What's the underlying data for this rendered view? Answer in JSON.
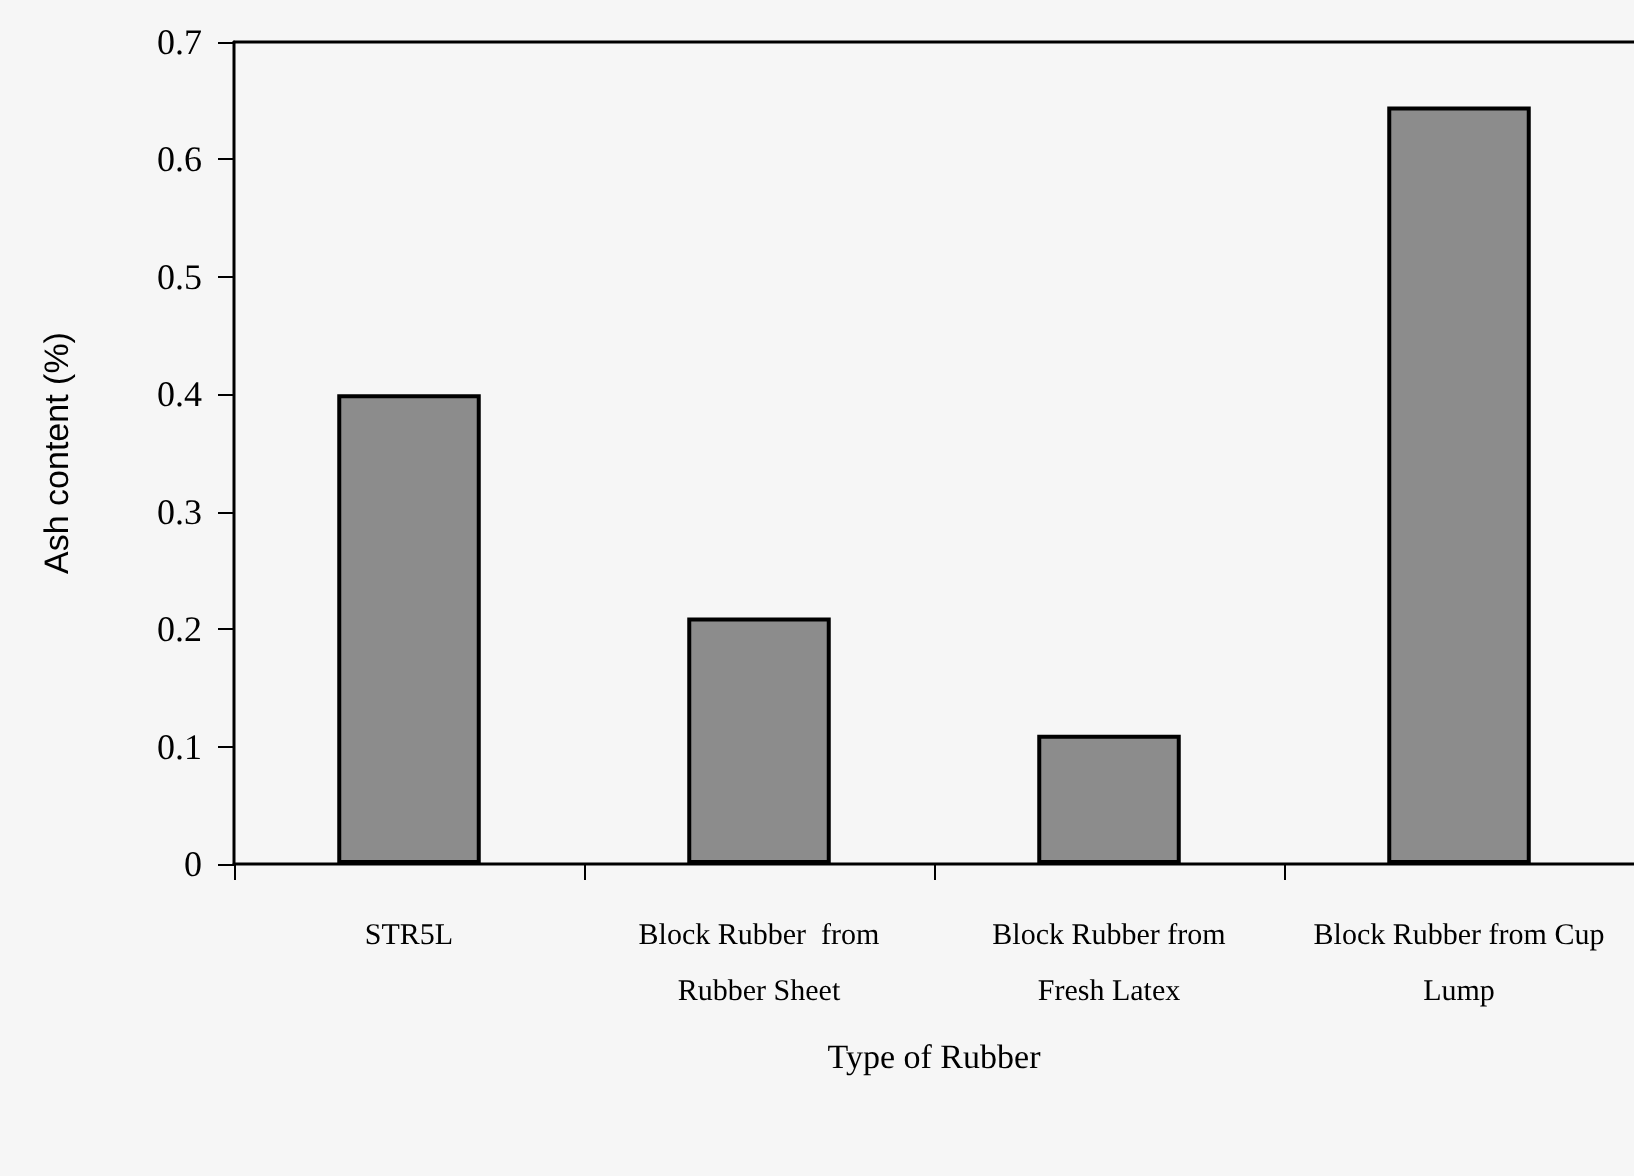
{
  "chart_data": {
    "type": "bar",
    "xlabel": "Type of Rubber",
    "ylabel": "Ash content (%)",
    "categories": [
      "STR5L",
      "Block Rubber  from\nRubber Sheet",
      "Block Rubber from\nFresh Latex",
      "Block Rubber from Cup\nLump"
    ],
    "values": [
      0.4,
      0.21,
      0.11,
      0.645
    ],
    "color": "#8c8c8c",
    "ylim": [
      0,
      0.7
    ],
    "yticks": [
      0,
      0.1,
      0.2,
      0.3,
      0.4,
      0.5,
      0.6,
      0.7
    ],
    "grid": false
  }
}
